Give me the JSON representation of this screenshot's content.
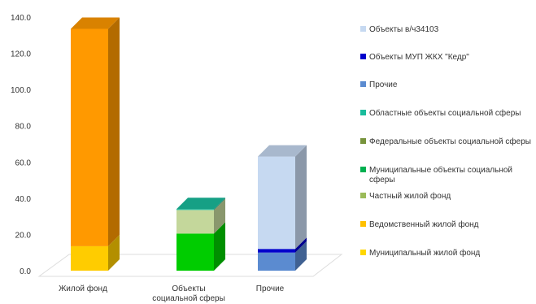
{
  "chart_data": {
    "type": "bar",
    "stacked": true,
    "three_d": true,
    "title": "",
    "xlabel": "",
    "ylabel": "",
    "ylim": [
      0,
      140
    ],
    "y_ticks": [
      "0.0",
      "20.0",
      "40.0",
      "60.0",
      "80.0",
      "100.0",
      "120.0",
      "140.0"
    ],
    "grid": false,
    "legend_position": "right",
    "categories": [
      {
        "name": "Жилой фонд",
        "lines": [
          "Жилой фонд"
        ]
      },
      {
        "name": "Объекты социальной сферы",
        "lines": [
          "Объекты",
          "социальной сферы"
        ]
      },
      {
        "name": "Прочие",
        "lines": [
          "Прочие"
        ]
      }
    ],
    "series": [
      {
        "name": "Муниципальный жилой фонд",
        "color": "#FFC000",
        "values": [
          0,
          0,
          0
        ]
      },
      {
        "name": "Ведомственный жилой фонд",
        "color": "#FFCC00",
        "values": [
          13.5,
          0,
          0
        ]
      },
      {
        "name": "Частный жилой фонд",
        "color": "#FF9900",
        "values": [
          120,
          0,
          0
        ]
      },
      {
        "name": "Муниципальные объекты социальной сферы",
        "color": "#00CC00",
        "values": [
          0,
          20.5,
          0
        ]
      },
      {
        "name": "Федеральные объекты социальной сферы",
        "color": "#C4D79B",
        "values": [
          0,
          13,
          0
        ]
      },
      {
        "name": "Областные объекты социальной сферы",
        "color": "#1ABC9C",
        "values": [
          0,
          0.5,
          0
        ]
      },
      {
        "name": "Прочие",
        "color": "#5B8BD0",
        "values": [
          0,
          0,
          10
        ]
      },
      {
        "name": "Объекты МУП ЖКХ \"Кедр\"",
        "color": "#0000CC",
        "values": [
          0,
          0,
          2
        ]
      },
      {
        "name": "Объекты в/ч34103",
        "color": "#C6D9F1",
        "values": [
          0,
          0,
          51
        ]
      }
    ],
    "legend_entries": [
      {
        "name": "Объекты в/ч34103",
        "lines": [
          "Объекты в/ч34103"
        ],
        "color": "#C6D9F1"
      },
      {
        "name": "Объекты МУП ЖКХ \"Кедр\"",
        "lines": [
          "Объекты МУП ЖКХ \"Кедр\""
        ],
        "color": "#0000CC"
      },
      {
        "name": "Прочие",
        "lines": [
          "Прочие"
        ],
        "color": "#5B8BD0"
      },
      {
        "name": "Областные объекты социальной сферы",
        "lines": [
          "Областные объекты социальной сферы"
        ],
        "color": "#1ABC9C"
      },
      {
        "name": "Федеральные объекты социальной сферы",
        "lines": [
          "Федеральные объекты социальной сферы"
        ],
        "color": "#77933C"
      },
      {
        "name": "Муниципальные объекты социальной сферы",
        "lines": [
          "Муниципальные объекты социальной",
          "сферы"
        ],
        "color": "#00B050"
      },
      {
        "name": "Частный жилой фонд",
        "lines": [
          "Частный жилой фонд"
        ],
        "color": "#9BBB59"
      },
      {
        "name": "Ведомственный жилой фонд",
        "lines": [
          "Ведомственный жилой фонд"
        ],
        "color": "#FFC000"
      },
      {
        "name": "Муниципальный жилой фонд",
        "lines": [
          "Муниципальный жилой фонд"
        ],
        "color": "#FFD700"
      }
    ]
  }
}
